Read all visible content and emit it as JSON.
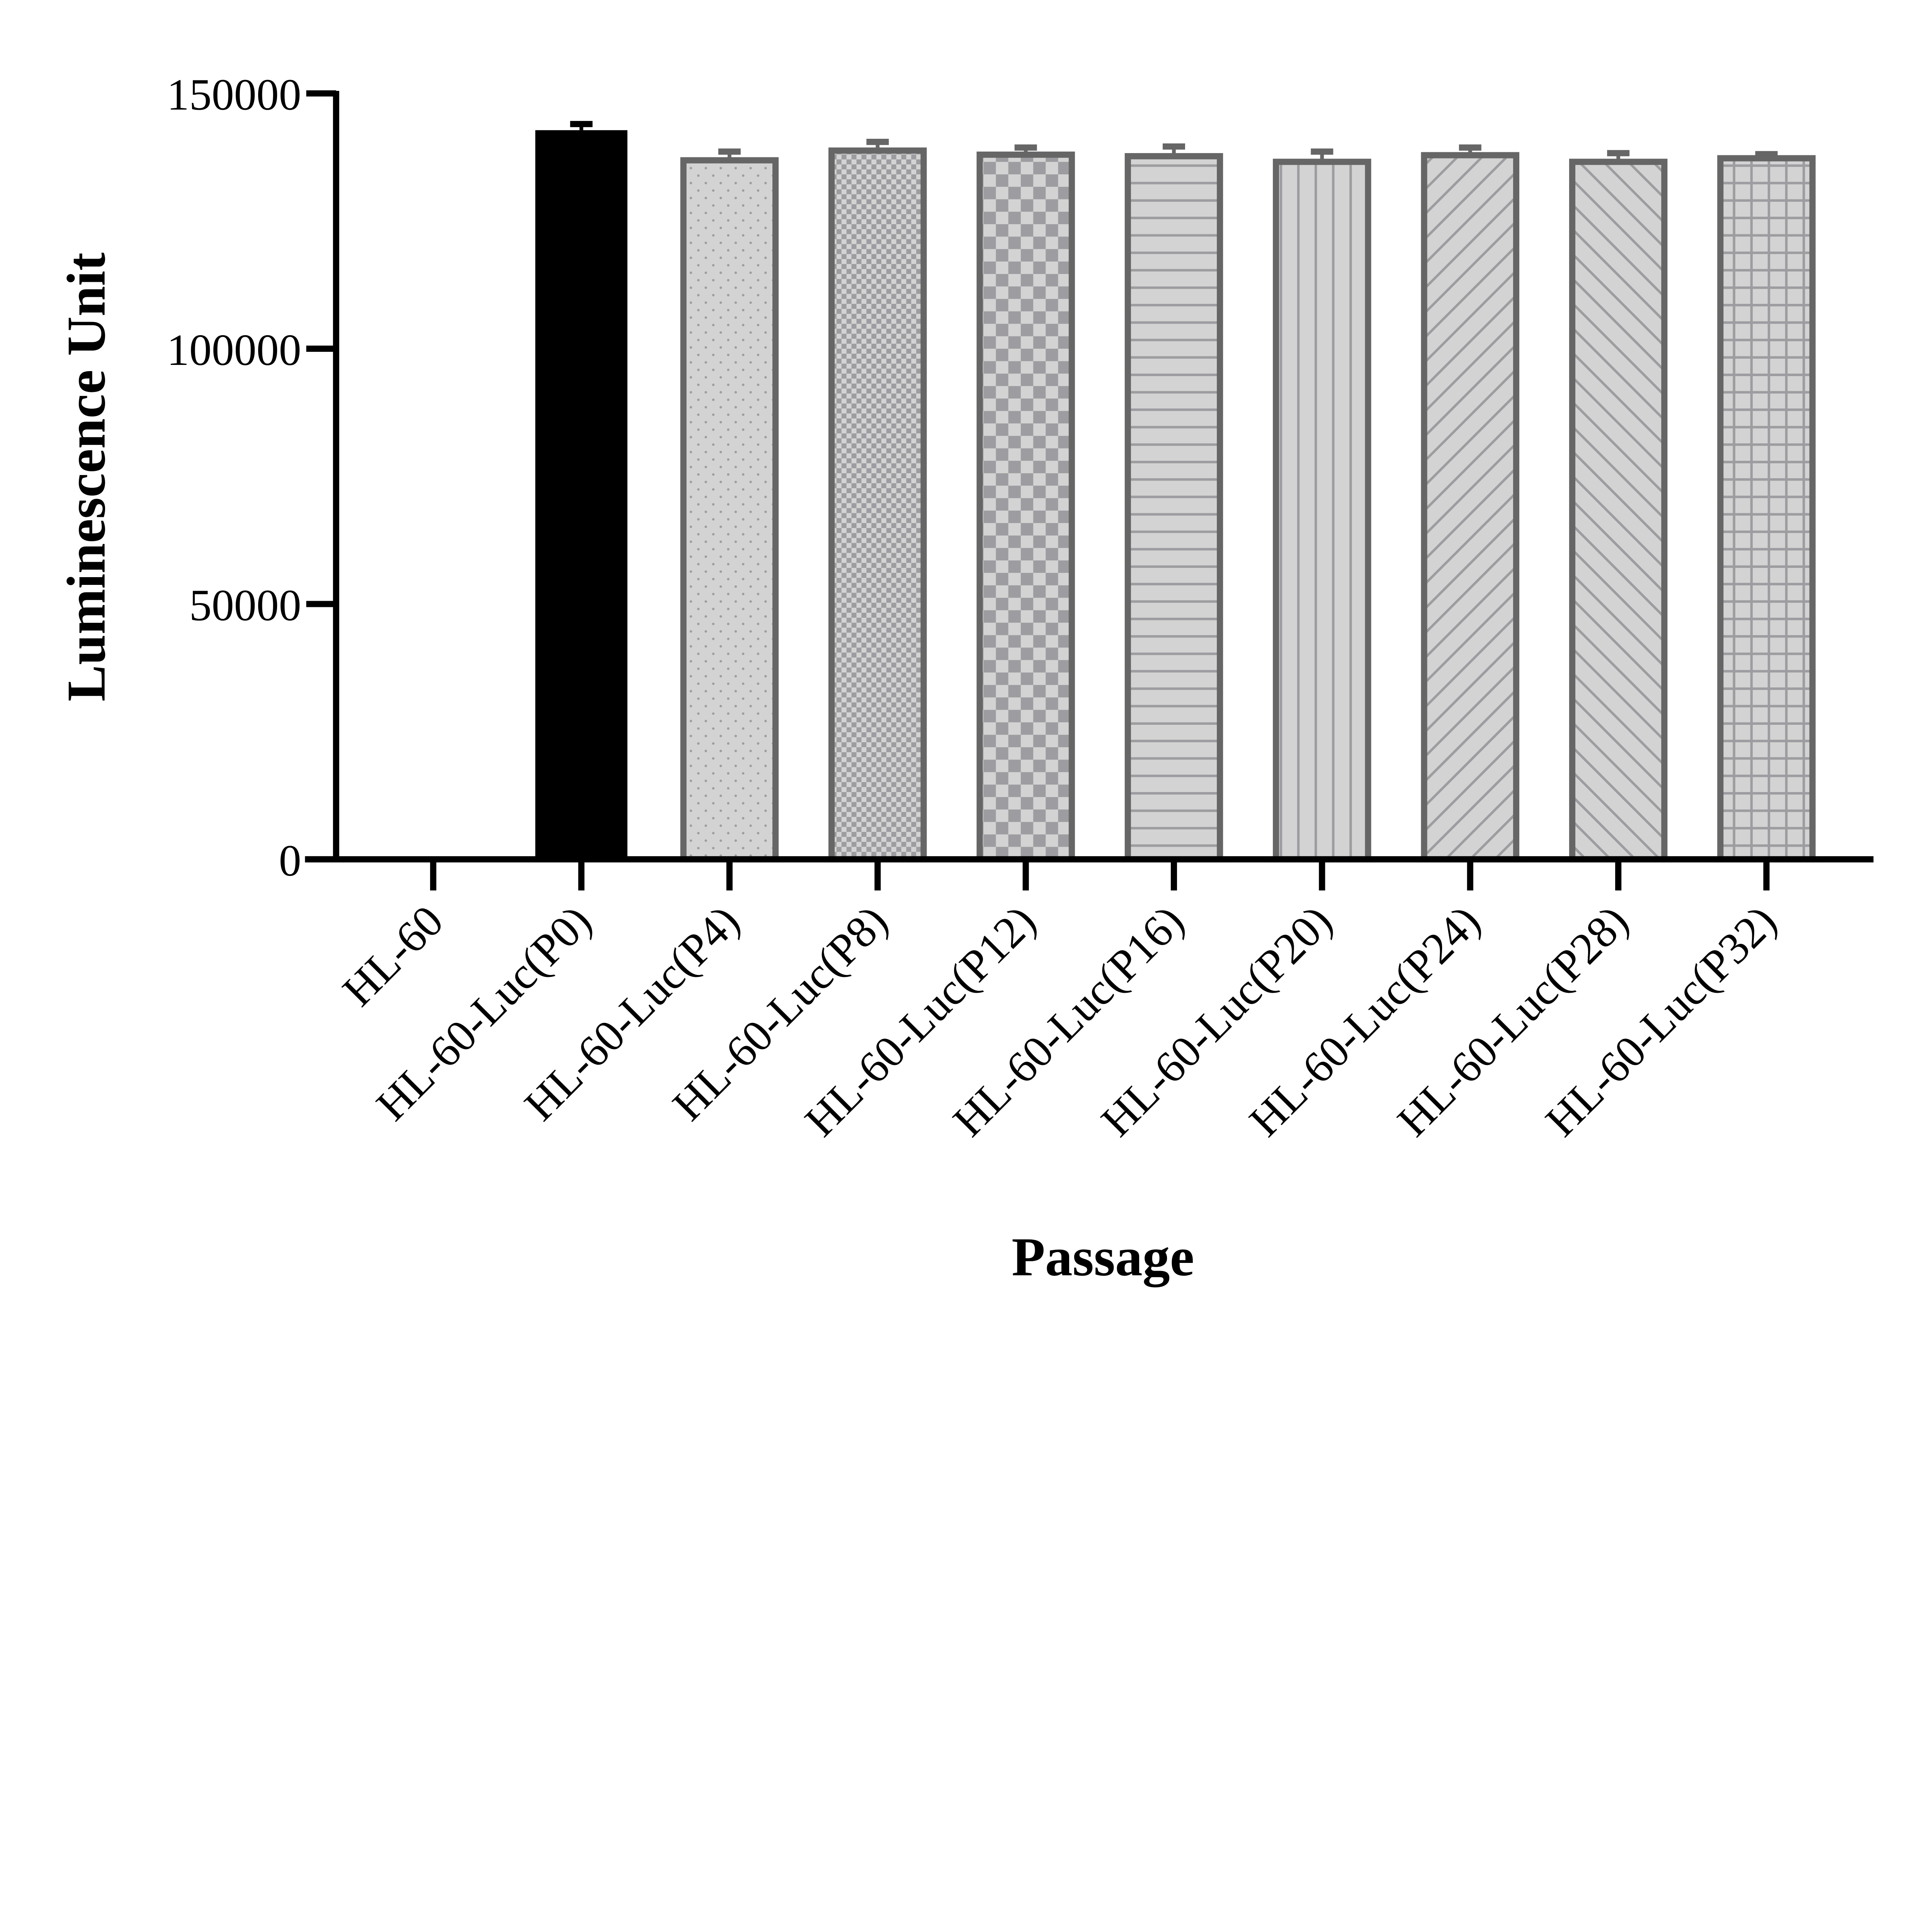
{
  "chart_data": {
    "type": "bar",
    "title": "",
    "xlabel": "Passage",
    "ylabel": "Luminescence Unit",
    "ylim": [
      0,
      150000
    ],
    "yticks": [
      0,
      50000,
      100000,
      150000
    ],
    "ytick_labels": [
      "0",
      "50000",
      "100000",
      "150000"
    ],
    "grid": false,
    "error_bars": true,
    "categories": [
      "HL-60",
      "HL-60-Luc(P0)",
      "HL-60-Luc(P4)",
      "HL-60-Luc(P8)",
      "HL-60-Luc(P12)",
      "HL-60-Luc(P16)",
      "HL-60-Luc(P20)",
      "HL-60-Luc(P24)",
      "HL-60-Luc(P28)",
      "HL-60-Luc(P32)"
    ],
    "values": [
      150,
      142800,
      136900,
      138800,
      138000,
      137700,
      136600,
      137900,
      136600,
      137300
    ],
    "errors": [
      50,
      1200,
      1700,
      1700,
      1400,
      1900,
      2000,
      1500,
      1700,
      800
    ],
    "patterns": [
      "none",
      "solid",
      "dots",
      "fine-checker",
      "checker",
      "horizontal-lines",
      "vertical-lines",
      "diagonal-up",
      "diagonal-down",
      "grid"
    ],
    "colors": {
      "solid": "#000000",
      "fill": "#d3d3d3",
      "pattern": "#9d9da1",
      "outline": "#666666",
      "axis": "#000000"
    }
  }
}
